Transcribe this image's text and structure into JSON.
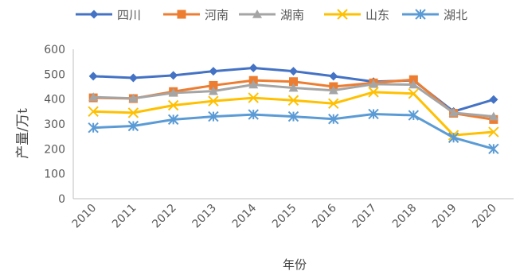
{
  "chart_data": {
    "type": "line",
    "title": "",
    "xlabel": "年份",
    "ylabel": "产量/万t",
    "ylim": [
      0,
      600
    ],
    "yticks": [
      0,
      100,
      200,
      300,
      400,
      500,
      600
    ],
    "grid": false,
    "legend_position": "top",
    "categories": [
      "2010",
      "2011",
      "2012",
      "2013",
      "2014",
      "2015",
      "2016",
      "2017",
      "2018",
      "2019",
      "2020"
    ],
    "series": [
      {
        "name": "四川",
        "color": "#4472C4",
        "marker": "diamond",
        "values": [
          492,
          485,
          495,
          512,
          525,
          512,
          492,
          470,
          475,
          350,
          398
        ]
      },
      {
        "name": "河南",
        "color": "#ED7D31",
        "marker": "square",
        "values": [
          405,
          402,
          430,
          455,
          475,
          470,
          450,
          465,
          478,
          343,
          318
        ]
      },
      {
        "name": "湖南",
        "color": "#A5A5A5",
        "marker": "triangle",
        "values": [
          408,
          403,
          425,
          432,
          458,
          445,
          435,
          460,
          458,
          345,
          330
        ]
      },
      {
        "name": "山东",
        "color": "#FFC000",
        "marker": "star",
        "values": [
          350,
          345,
          375,
          392,
          405,
          395,
          382,
          428,
          422,
          255,
          268
        ]
      },
      {
        "name": "湖北",
        "color": "#5B9BD5",
        "marker": "asterisk",
        "values": [
          285,
          292,
          318,
          330,
          338,
          330,
          320,
          340,
          335,
          245,
          200
        ]
      }
    ]
  }
}
